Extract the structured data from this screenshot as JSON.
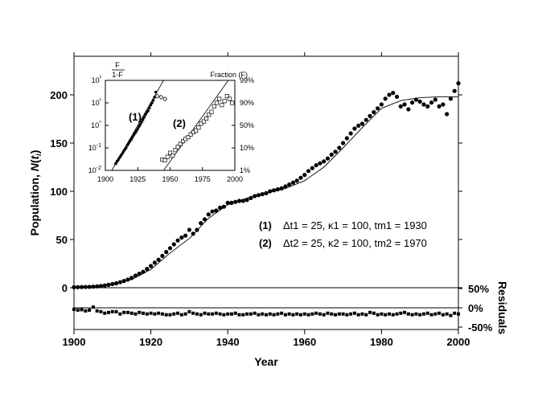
{
  "chart_data": [
    {
      "type": "scatter",
      "role": "main",
      "xlabel": "Year",
      "ylabel": "Population, N(t_i)",
      "xlim": [
        1900,
        2000
      ],
      "ylim": [
        0,
        230
      ],
      "xticks": [
        1900,
        1920,
        1940,
        1960,
        1980,
        2000
      ],
      "yticks": [
        0,
        50,
        100,
        150,
        200
      ],
      "legend": [
        {
          "label": "(1)",
          "text": "Δt1 = 25, κ1 = 100, tm1 = 1930"
        },
        {
          "label": "(2)",
          "text": "Δt2 = 25, κ2 = 100, tm2 = 1970"
        }
      ],
      "series": [
        {
          "marker": "filled-circle",
          "x": [
            1900,
            1901,
            1902,
            1903,
            1904,
            1905,
            1906,
            1907,
            1908,
            1909,
            1910,
            1911,
            1912,
            1913,
            1914,
            1915,
            1916,
            1917,
            1918,
            1919,
            1920,
            1921,
            1922,
            1923,
            1924,
            1925,
            1926,
            1927,
            1928,
            1929,
            1930,
            1931,
            1932,
            1933,
            1934,
            1935,
            1936,
            1937,
            1938,
            1939,
            1940,
            1941,
            1942,
            1943,
            1944,
            1945,
            1946,
            1947,
            1948,
            1949,
            1950,
            1951,
            1952,
            1953,
            1954,
            1955,
            1956,
            1957,
            1958,
            1959,
            1960,
            1961,
            1962,
            1963,
            1964,
            1965,
            1966,
            1967,
            1968,
            1969,
            1970,
            1971,
            1972,
            1973,
            1974,
            1975,
            1976,
            1977,
            1978,
            1979,
            1980,
            1981,
            1982,
            1983,
            1984,
            1985,
            1986,
            1987,
            1988,
            1989,
            1990,
            1991,
            1992,
            1993,
            1994,
            1995,
            1996,
            1997,
            1998,
            1999,
            2000
          ],
          "y": [
            0.5,
            0.6,
            0.7,
            0.8,
            0.9,
            1.1,
            1.4,
            1.8,
            2.3,
            3.0,
            3.8,
            4.6,
            5.7,
            7.0,
            8.5,
            10.2,
            12.5,
            14.5,
            16.5,
            19.5,
            22.5,
            26,
            29,
            33,
            37,
            41,
            45,
            49,
            52,
            54,
            60,
            56,
            60,
            67,
            71,
            76,
            79,
            80,
            83,
            84,
            88,
            88,
            89,
            90,
            90,
            91,
            93,
            95,
            96,
            97,
            98,
            100,
            101,
            102,
            103,
            105,
            107,
            109,
            111,
            114,
            117,
            121,
            124,
            127,
            129,
            131,
            134,
            138,
            141,
            145,
            150,
            155,
            160,
            165,
            168,
            170,
            174,
            178,
            182,
            186,
            190,
            196,
            200,
            202,
            198,
            188,
            190,
            185,
            192,
            195,
            193,
            190,
            188,
            192,
            195,
            188,
            190,
            180,
            196,
            204,
            212
          ]
        }
      ],
      "fit_curve": {
        "style": "thin line",
        "x": [
          1900,
          1905,
          1910,
          1915,
          1920,
          1925,
          1930,
          1935,
          1940,
          1945,
          1950,
          1955,
          1960,
          1965,
          1970,
          1975,
          1980,
          1985,
          1990,
          1995,
          2000
        ],
        "y": [
          0.5,
          1.2,
          3.5,
          8.5,
          19,
          36,
          51,
          72,
          86,
          93,
          98,
          103,
          111,
          125,
          145,
          166,
          186,
          194,
          197,
          198,
          198
        ]
      }
    },
    {
      "type": "scatter",
      "role": "residuals",
      "ylabel": "Residuals",
      "ylim": [
        -50,
        50
      ],
      "yticks": [
        50,
        0,
        -50
      ],
      "ytick_labels": [
        "50%",
        "0%",
        "-50%"
      ],
      "series": [
        {
          "marker": "filled-square",
          "x": [
            1900,
            1901,
            1902,
            1903,
            1904,
            1905,
            1906,
            1907,
            1908,
            1909,
            1910,
            1911,
            1912,
            1913,
            1914,
            1915,
            1916,
            1917,
            1918,
            1919,
            1920,
            1921,
            1922,
            1923,
            1924,
            1925,
            1926,
            1927,
            1928,
            1929,
            1930,
            1931,
            1932,
            1933,
            1934,
            1935,
            1936,
            1937,
            1938,
            1939,
            1940,
            1941,
            1942,
            1943,
            1944,
            1945,
            1946,
            1947,
            1948,
            1949,
            1950,
            1951,
            1952,
            1953,
            1954,
            1955,
            1956,
            1957,
            1958,
            1959,
            1960,
            1961,
            1962,
            1963,
            1964,
            1965,
            1966,
            1967,
            1968,
            1969,
            1970,
            1971,
            1972,
            1973,
            1974,
            1975,
            1976,
            1977,
            1978,
            1979,
            1980,
            1981,
            1982,
            1983,
            1984,
            1985,
            1986,
            1987,
            1988,
            1989,
            1990,
            1991,
            1992,
            1993,
            1994,
            1995,
            1996,
            1997,
            1998,
            1999,
            2000
          ],
          "y": [
            -4,
            -6,
            -5,
            -8,
            -6,
            2,
            -8,
            -10,
            -14,
            -12,
            -10,
            -10,
            -16,
            -12,
            -12,
            -14,
            -16,
            -12,
            -14,
            -16,
            -14,
            -16,
            -14,
            -16,
            -18,
            -18,
            -16,
            -14,
            -18,
            -16,
            -10,
            -14,
            -16,
            -18,
            -14,
            -16,
            -16,
            -14,
            -16,
            -18,
            -16,
            -16,
            -14,
            -18,
            -18,
            -16,
            -16,
            -14,
            -18,
            -16,
            -18,
            -16,
            -18,
            -16,
            -14,
            -18,
            -16,
            -18,
            -16,
            -18,
            -16,
            -18,
            -16,
            -14,
            -16,
            -18,
            -14,
            -16,
            -18,
            -16,
            -16,
            -18,
            -16,
            -14,
            -18,
            -16,
            -18,
            -12,
            -14,
            -18,
            -16,
            -18,
            -16,
            -18,
            -16,
            -14,
            -12,
            -16,
            -18,
            -16,
            -18,
            -16,
            -14,
            -18,
            -16,
            -14,
            -18,
            -16,
            -20,
            -14,
            -16
          ]
        }
      ]
    },
    {
      "type": "scatter",
      "role": "inset",
      "xlim": [
        1900,
        2000
      ],
      "xticks": [
        1900,
        1925,
        1950,
        1975,
        2000
      ],
      "yscale": "log",
      "ylim": [
        0.01,
        100
      ],
      "yticks": [
        0.01,
        0.1,
        1,
        10,
        100
      ],
      "ytick_labels": [
        "10-2",
        "10-1",
        "10⁰",
        "10¹",
        "10²"
      ],
      "ylabel_left": "F / 1-F",
      "ylabel_right": "Fraction (F)",
      "right_tick_labels": [
        "1%",
        "10%",
        "50%",
        "90%",
        "99%"
      ],
      "series_labels": [
        "(1)",
        "(2)"
      ],
      "series": [
        {
          "name": "(1)",
          "marker": "filled-circle",
          "x": [
            1908,
            1909,
            1910,
            1911,
            1912,
            1913,
            1914,
            1915,
            1916,
            1917,
            1918,
            1919,
            1920,
            1921,
            1922,
            1923,
            1924,
            1925,
            1926,
            1927,
            1928,
            1929,
            1930,
            1931,
            1932,
            1933,
            1934,
            1935,
            1936,
            1937,
            1938,
            1939
          ],
          "y": [
            0.02,
            0.025,
            0.03,
            0.037,
            0.045,
            0.055,
            0.068,
            0.084,
            0.1,
            0.13,
            0.16,
            0.2,
            0.24,
            0.3,
            0.38,
            0.46,
            0.56,
            0.7,
            0.9,
            1.1,
            1.4,
            1.8,
            2.3,
            3.0,
            3.8,
            4.5,
            6,
            8,
            10,
            13,
            18,
            30
          ]
        },
        {
          "name": "(1)",
          "marker": "open-diamond",
          "x": [
            1940,
            1943,
            1946
          ],
          "y": [
            20,
            18,
            15
          ]
        },
        {
          "name": "(2)",
          "marker": "open-square",
          "x": [
            1944,
            1946,
            1948,
            1950,
            1952,
            1954,
            1956,
            1958,
            1960,
            1962,
            1964,
            1966,
            1968,
            1970,
            1972,
            1974,
            1976,
            1978,
            1980,
            1982,
            1984,
            1986,
            1988,
            1990,
            1992,
            1994,
            1996,
            1998
          ],
          "y": [
            0.03,
            0.028,
            0.04,
            0.06,
            0.045,
            0.08,
            0.11,
            0.15,
            0.2,
            0.25,
            0.3,
            0.4,
            0.5,
            0.6,
            0.8,
            1.2,
            1.5,
            2.0,
            3.0,
            4,
            7,
            10,
            15,
            8,
            12,
            20,
            15,
            10
          ]
        }
      ],
      "fit_lines": [
        {
          "name": "(1)",
          "x": [
            1905,
            1945
          ],
          "y": [
            0.01,
            100
          ]
        },
        {
          "name": "(2)",
          "x": [
            1945,
            1995
          ],
          "y": [
            0.01,
            100
          ]
        }
      ]
    }
  ]
}
